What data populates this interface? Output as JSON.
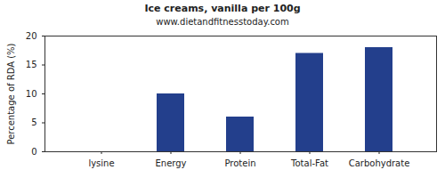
{
  "chart_data": {
    "type": "bar",
    "title": "Ice creams, vanilla per 100g",
    "subtitle": "www.dietandfitnesstoday.com",
    "y_label": "Percentage of RDA (%)",
    "categories": [
      "lysine",
      "Energy",
      "Protein",
      "Total-Fat",
      "Carbohydrate"
    ],
    "values": [
      0,
      10,
      6,
      17,
      18
    ],
    "color": "#233f8c",
    "ylim": [
      0,
      20
    ],
    "yticks": [
      0,
      5,
      10,
      15,
      20
    ],
    "grid": false
  }
}
